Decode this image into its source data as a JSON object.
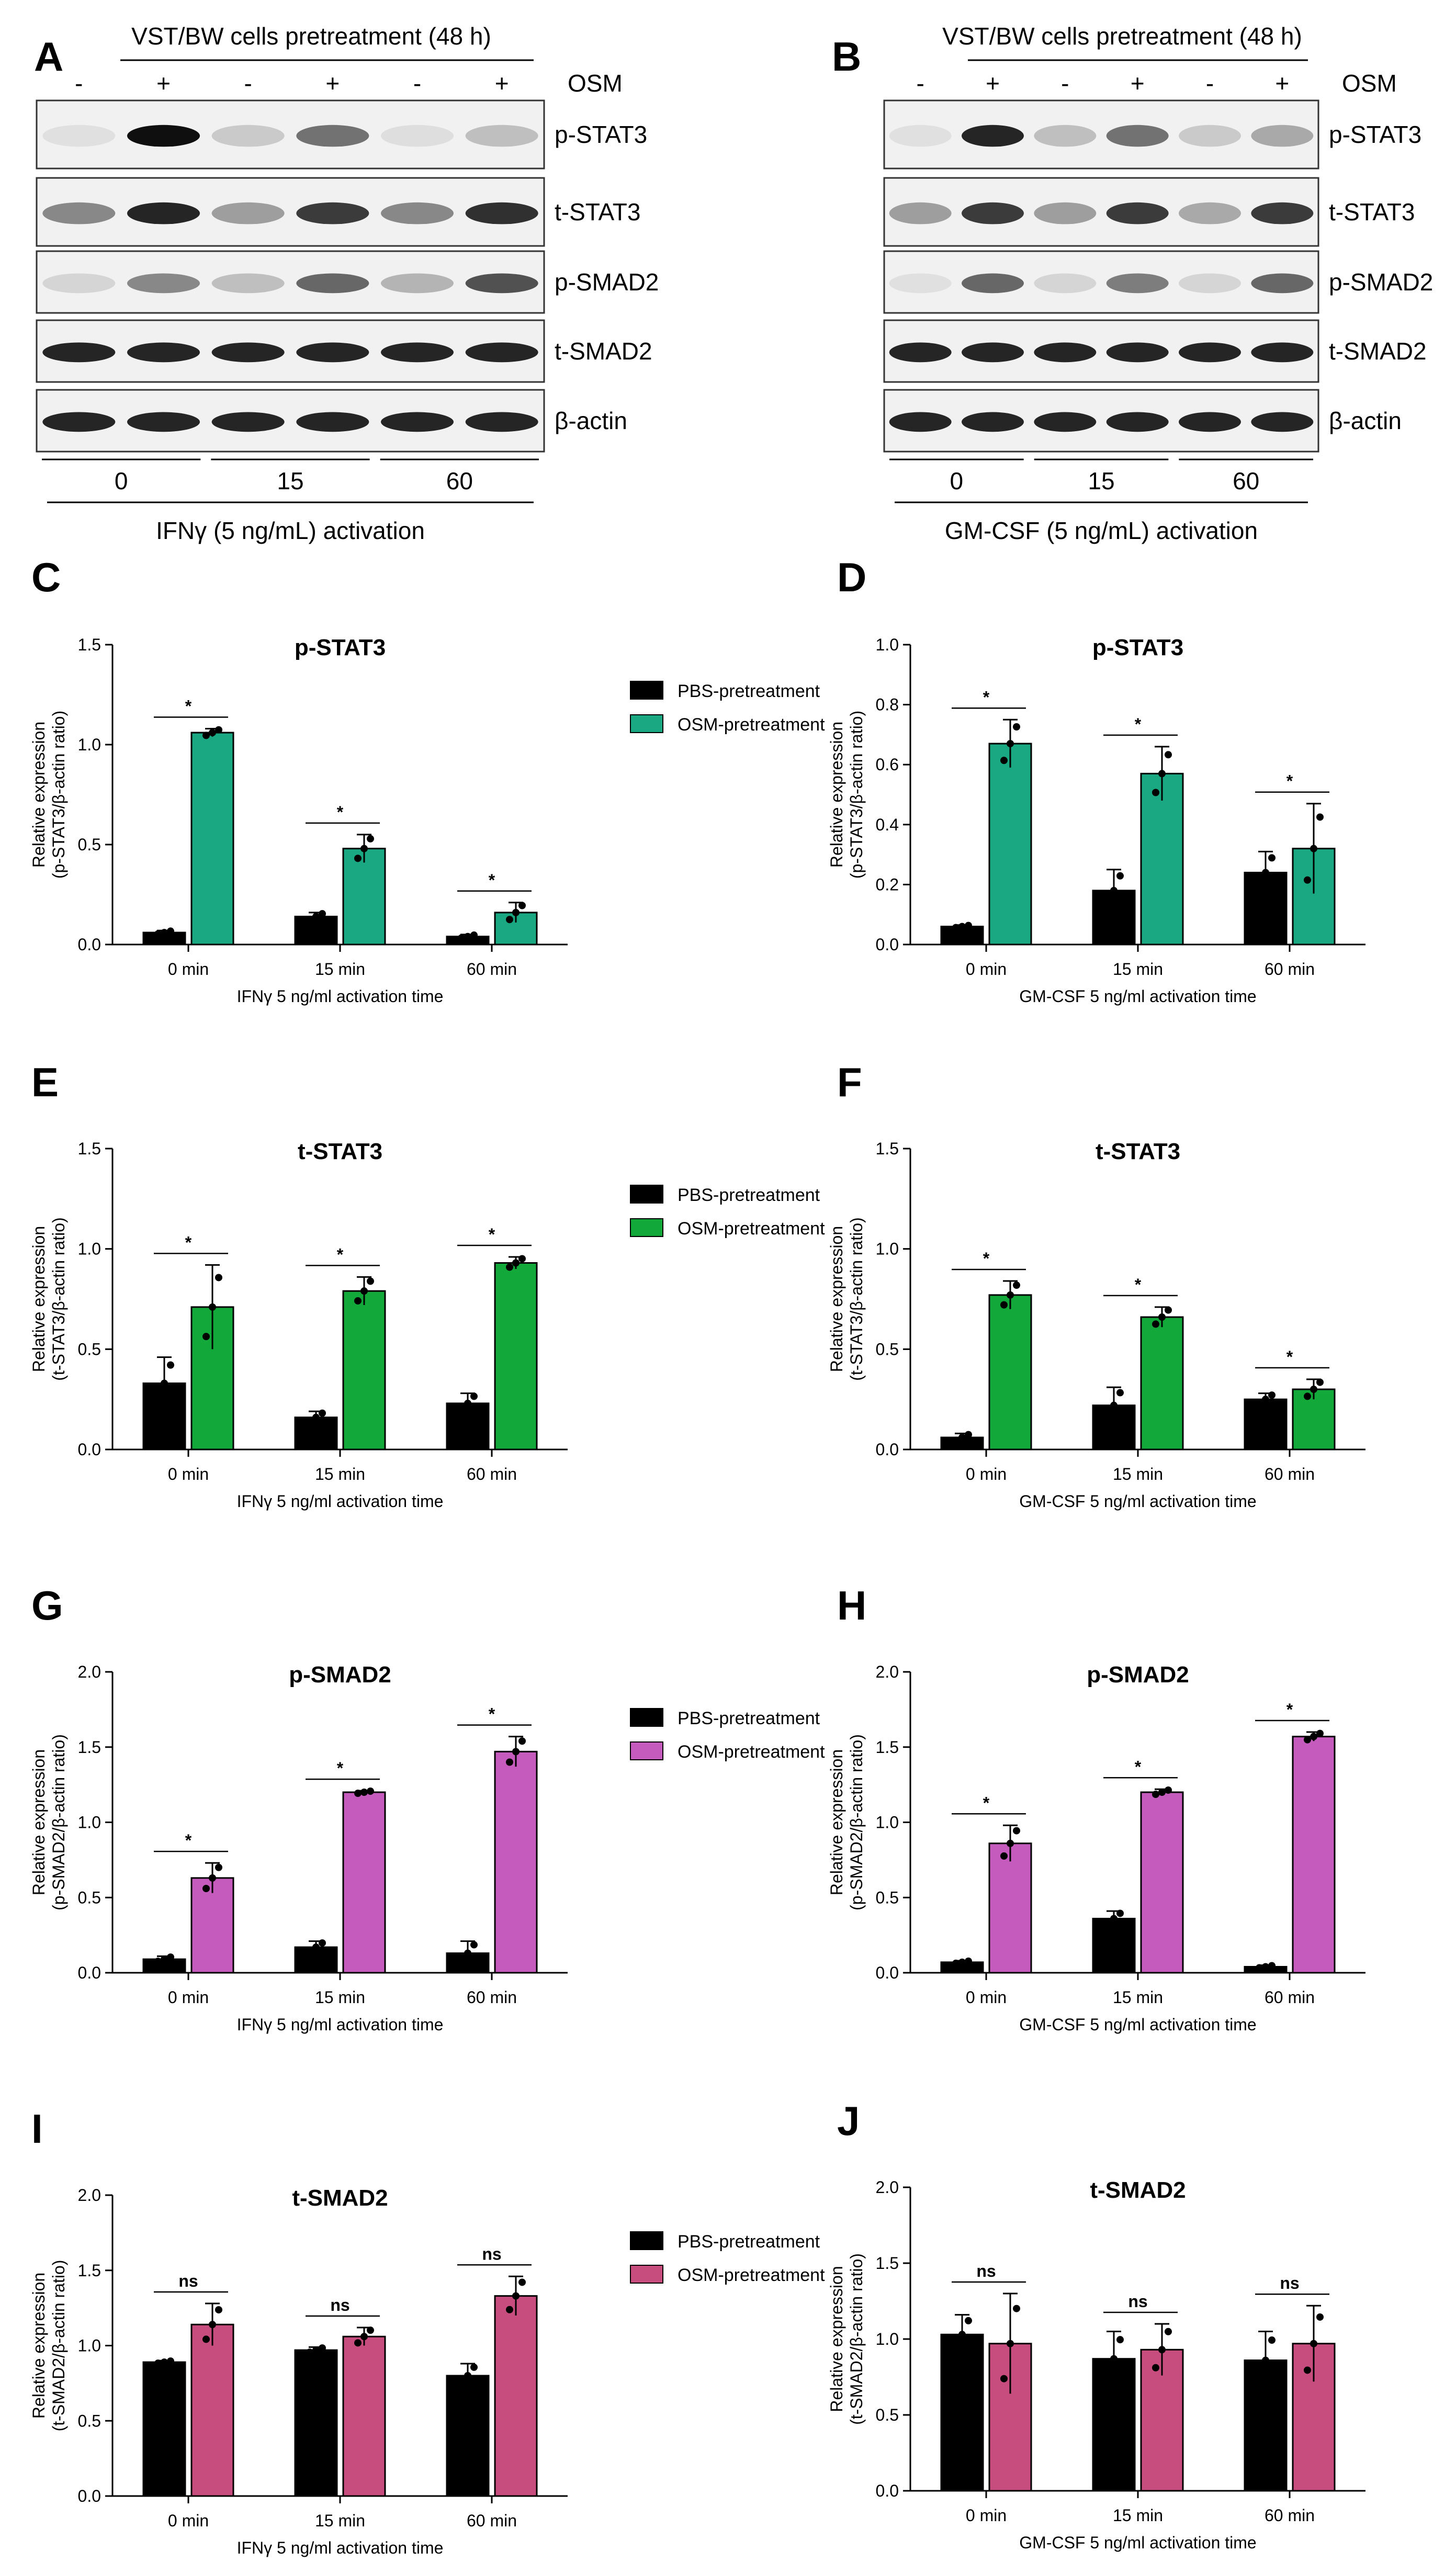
{
  "blots": [
    {
      "panel": "A",
      "header": "VST/BW cells pretreatment (48 h)",
      "osm_label": "OSM",
      "signs": [
        "-",
        "+",
        "-",
        "+",
        "-",
        "+"
      ],
      "bands": [
        "p-STAT3",
        "t-STAT3",
        "p-SMAD2",
        "t-SMAD2",
        "β-actin"
      ],
      "times": [
        "0",
        "15",
        "60"
      ],
      "caption": "IFNγ (5 ng/mL) activation",
      "intensity": {
        "p-STAT3": [
          0.05,
          1.0,
          0.15,
          0.55,
          0.06,
          0.2
        ],
        "t-STAT3": [
          0.45,
          0.9,
          0.35,
          0.8,
          0.45,
          0.85
        ],
        "p-SMAD2": [
          0.1,
          0.45,
          0.2,
          0.6,
          0.25,
          0.7
        ],
        "t-SMAD2": [
          0.9,
          0.9,
          0.9,
          0.9,
          0.9,
          0.9
        ],
        "β-actin": [
          0.9,
          0.9,
          0.9,
          0.9,
          0.9,
          0.9
        ]
      }
    },
    {
      "panel": "B",
      "header": "VST/BW cells pretreatment (48 h)",
      "osm_label": "OSM",
      "signs": [
        "-",
        "+",
        "-",
        "+",
        "-",
        "+"
      ],
      "bands": [
        "p-STAT3",
        "t-STAT3",
        "p-SMAD2",
        "t-SMAD2",
        "β-actin"
      ],
      "times": [
        "0",
        "15",
        "60"
      ],
      "caption": "GM-CSF (5 ng/mL) activation",
      "intensity": {
        "p-STAT3": [
          0.05,
          0.9,
          0.2,
          0.55,
          0.15,
          0.3
        ],
        "t-STAT3": [
          0.35,
          0.8,
          0.35,
          0.8,
          0.3,
          0.8
        ],
        "p-SMAD2": [
          0.05,
          0.6,
          0.1,
          0.5,
          0.1,
          0.6
        ],
        "t-SMAD2": [
          0.9,
          0.9,
          0.9,
          0.9,
          0.9,
          0.9
        ],
        "β-actin": [
          0.9,
          0.9,
          0.9,
          0.9,
          0.9,
          0.9
        ]
      }
    }
  ],
  "chart_data": [
    {
      "panel": "C",
      "type": "bar",
      "title": "p-STAT3",
      "ylabel_line1": "Relative expression",
      "ylabel_line2": "(p-STAT3/β-actin ratio)",
      "xlabel": "IFNγ 5 ng/ml activation time",
      "ylim": [
        0,
        1.5
      ],
      "yticks": [
        "0.0",
        "0.5",
        "1.0",
        "1.5"
      ],
      "tickvals": [
        0,
        0.5,
        1.0,
        1.5
      ],
      "categories": [
        "0 min",
        "15 min",
        "60 min"
      ],
      "legend": true,
      "series": [
        {
          "name": "PBS-pretreatment",
          "color": "#000000",
          "values": [
            0.06,
            0.14,
            0.04
          ],
          "errors": [
            0.01,
            0.02,
            0.01
          ]
        },
        {
          "name": "OSM-pretreatment",
          "color": "#1aa882",
          "values": [
            1.06,
            0.48,
            0.16
          ],
          "errors": [
            0.02,
            0.07,
            0.05
          ]
        }
      ],
      "sig": [
        "*",
        "*",
        "*"
      ]
    },
    {
      "panel": "D",
      "type": "bar",
      "title": "p-STAT3",
      "ylabel_line1": "Relative expression",
      "ylabel_line2": "(p-STAT3/β-actin ratio)",
      "xlabel": "GM-CSF 5 ng/ml activation time",
      "ylim": [
        0,
        1.0
      ],
      "yticks": [
        "0.0",
        "0.2",
        "0.4",
        "0.6",
        "0.8",
        "1.0"
      ],
      "tickvals": [
        0,
        0.2,
        0.4,
        0.6,
        0.8,
        1.0
      ],
      "categories": [
        "0 min",
        "15 min",
        "60 min"
      ],
      "legend": false,
      "series": [
        {
          "name": "PBS-pretreatment",
          "color": "#000000",
          "values": [
            0.06,
            0.18,
            0.24
          ],
          "errors": [
            0.005,
            0.07,
            0.07
          ]
        },
        {
          "name": "OSM-pretreatment",
          "color": "#1aa882",
          "values": [
            0.67,
            0.57,
            0.32
          ],
          "errors": [
            0.08,
            0.09,
            0.15
          ]
        }
      ],
      "sig": [
        "*",
        "*",
        "*"
      ]
    },
    {
      "panel": "E",
      "type": "bar",
      "title": "t-STAT3",
      "ylabel_line1": "Relative expression",
      "ylabel_line2": "(t-STAT3/β-actin ratio)",
      "xlabel": "IFNγ 5 ng/ml activation time",
      "ylim": [
        0,
        1.5
      ],
      "yticks": [
        "0.0",
        "0.5",
        "1.0",
        "1.5"
      ],
      "tickvals": [
        0,
        0.5,
        1.0,
        1.5
      ],
      "categories": [
        "0 min",
        "15 min",
        "60 min"
      ],
      "legend": true,
      "series": [
        {
          "name": "PBS-pretreatment",
          "color": "#000000",
          "values": [
            0.33,
            0.16,
            0.23
          ],
          "errors": [
            0.13,
            0.03,
            0.05
          ]
        },
        {
          "name": "OSM-pretreatment",
          "color": "#12a83a",
          "values": [
            0.71,
            0.79,
            0.93
          ],
          "errors": [
            0.21,
            0.07,
            0.03
          ]
        }
      ],
      "sig": [
        "*",
        "*",
        "*"
      ]
    },
    {
      "panel": "F",
      "type": "bar",
      "title": "t-STAT3",
      "ylabel_line1": "Relative expression",
      "ylabel_line2": "(t-STAT3/β-actin ratio)",
      "xlabel": "GM-CSF 5 ng/ml activation time",
      "ylim": [
        0,
        1.5
      ],
      "yticks": [
        "0.0",
        "0.5",
        "1.0",
        "1.5"
      ],
      "tickvals": [
        0,
        0.5,
        1.0,
        1.5
      ],
      "categories": [
        "0 min",
        "15 min",
        "60 min"
      ],
      "legend": false,
      "series": [
        {
          "name": "PBS-pretreatment",
          "color": "#000000",
          "values": [
            0.06,
            0.22,
            0.25
          ],
          "errors": [
            0.02,
            0.09,
            0.03
          ]
        },
        {
          "name": "OSM-pretreatment",
          "color": "#12a83a",
          "values": [
            0.77,
            0.66,
            0.3
          ],
          "errors": [
            0.07,
            0.05,
            0.05
          ]
        }
      ],
      "sig": [
        "*",
        "*",
        "*"
      ]
    },
    {
      "panel": "G",
      "type": "bar",
      "title": "p-SMAD2",
      "ylabel_line1": "Relative expression",
      "ylabel_line2": "(p-SMAD2/β-actin ratio)",
      "xlabel": "IFNγ 5 ng/ml activation time",
      "ylim": [
        0,
        2.0
      ],
      "yticks": [
        "0.0",
        "0.5",
        "1.0",
        "1.5",
        "2.0"
      ],
      "tickvals": [
        0,
        0.5,
        1.0,
        1.5,
        2.0
      ],
      "categories": [
        "0 min",
        "15 min",
        "60 min"
      ],
      "legend": true,
      "series": [
        {
          "name": "PBS-pretreatment",
          "color": "#000000",
          "values": [
            0.09,
            0.17,
            0.13
          ],
          "errors": [
            0.02,
            0.04,
            0.08
          ]
        },
        {
          "name": "OSM-pretreatment",
          "color": "#c55bbd",
          "values": [
            0.63,
            1.2,
            1.47
          ],
          "errors": [
            0.1,
            0.01,
            0.1
          ]
        }
      ],
      "sig": [
        "*",
        "*",
        "*"
      ]
    },
    {
      "panel": "H",
      "type": "bar",
      "title": "p-SMAD2",
      "ylabel_line1": "Relative expression",
      "ylabel_line2": "(p-SMAD2/β-actin ratio)",
      "xlabel": "GM-CSF 5 ng/ml activation time",
      "ylim": [
        0,
        2.0
      ],
      "yticks": [
        "0.0",
        "0.5",
        "1.0",
        "1.5",
        "2.0"
      ],
      "tickvals": [
        0,
        0.5,
        1.0,
        1.5,
        2.0
      ],
      "categories": [
        "0 min",
        "15 min",
        "60 min"
      ],
      "legend": false,
      "series": [
        {
          "name": "PBS-pretreatment",
          "color": "#000000",
          "values": [
            0.07,
            0.36,
            0.04
          ],
          "errors": [
            0.01,
            0.05,
            0.01
          ]
        },
        {
          "name": "OSM-pretreatment",
          "color": "#c55bbd",
          "values": [
            0.86,
            1.2,
            1.57
          ],
          "errors": [
            0.12,
            0.02,
            0.03
          ]
        }
      ],
      "sig": [
        "*",
        "*",
        "*"
      ]
    },
    {
      "panel": "I",
      "type": "bar",
      "title": "t-SMAD2",
      "ylabel_line1": "Relative expression",
      "ylabel_line2": "(t-SMAD2/β-actin ratio)",
      "xlabel": "IFNγ 5 ng/ml activation time",
      "ylim": [
        0,
        2.0
      ],
      "yticks": [
        "0.0",
        "0.5",
        "1.0",
        "1.5",
        "2.0"
      ],
      "tickvals": [
        0,
        0.5,
        1.0,
        1.5,
        2.0
      ],
      "categories": [
        "0 min",
        "15 min",
        "60 min"
      ],
      "legend": true,
      "series": [
        {
          "name": "PBS-pretreatment",
          "color": "#000000",
          "values": [
            0.89,
            0.97,
            0.8
          ],
          "errors": [
            0.01,
            0.02,
            0.08
          ]
        },
        {
          "name": "OSM-pretreatment",
          "color": "#c74d7e",
          "values": [
            1.14,
            1.06,
            1.33
          ],
          "errors": [
            0.14,
            0.06,
            0.13
          ]
        }
      ],
      "sig": [
        "ns",
        "ns",
        "ns"
      ]
    },
    {
      "panel": "J",
      "type": "bar",
      "title": "t-SMAD2",
      "ylabel_line1": "Relative expression",
      "ylabel_line2": "(t-SMAD2/β-actin ratio)",
      "xlabel": "GM-CSF 5 ng/ml activation time",
      "ylim": [
        0,
        2.0
      ],
      "yticks": [
        "0.0",
        "0.5",
        "1.0",
        "1.5",
        "2.0"
      ],
      "tickvals": [
        0,
        0.5,
        1.0,
        1.5,
        2.0
      ],
      "categories": [
        "0 min",
        "15 min",
        "60 min"
      ],
      "legend": false,
      "series": [
        {
          "name": "PBS-pretreatment",
          "color": "#000000",
          "values": [
            1.03,
            0.87,
            0.86
          ],
          "errors": [
            0.13,
            0.18,
            0.19
          ]
        },
        {
          "name": "OSM-pretreatment",
          "color": "#c74d7e",
          "values": [
            0.97,
            0.93,
            0.97
          ],
          "errors": [
            0.33,
            0.17,
            0.25
          ]
        }
      ],
      "sig": [
        "ns",
        "ns",
        "ns"
      ]
    }
  ]
}
